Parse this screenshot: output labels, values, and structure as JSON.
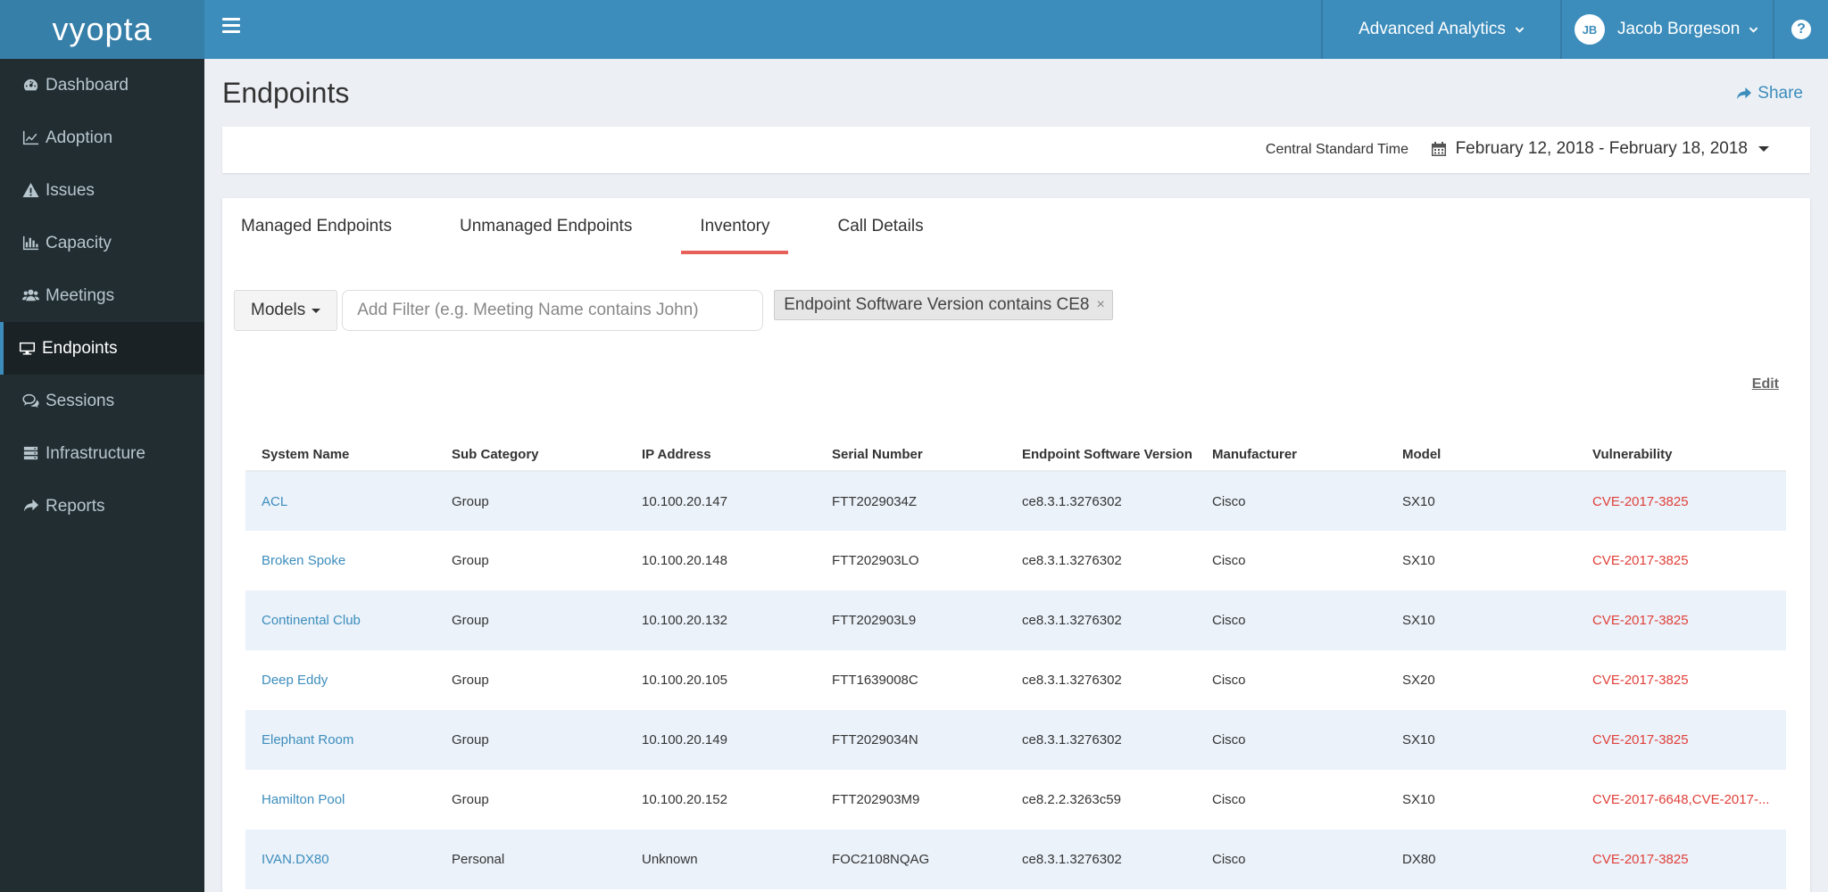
{
  "logo": "vyopta",
  "sidebar": {
    "items": [
      {
        "label": "Dashboard",
        "icon": "dashboard-icon"
      },
      {
        "label": "Adoption",
        "icon": "line-chart-icon"
      },
      {
        "label": "Issues",
        "icon": "warning-icon"
      },
      {
        "label": "Capacity",
        "icon": "bar-chart-icon"
      },
      {
        "label": "Meetings",
        "icon": "users-icon"
      },
      {
        "label": "Endpoints",
        "icon": "desktop-icon",
        "active": true
      },
      {
        "label": "Sessions",
        "icon": "comments-icon"
      },
      {
        "label": "Infrastructure",
        "icon": "server-icon"
      },
      {
        "label": "Reports",
        "icon": "share-icon"
      }
    ]
  },
  "header": {
    "analytics_label": "Advanced Analytics",
    "user_initials": "JB",
    "user_name": "Jacob Borgeson",
    "help_label": "?"
  },
  "page": {
    "title": "Endpoints",
    "share_label": "Share",
    "timezone": "Central Standard Time",
    "date_range": "February 12, 2018 - February 18, 2018"
  },
  "tabs": [
    "Managed Endpoints",
    "Unmanaged Endpoints",
    "Inventory",
    "Call Details"
  ],
  "active_tab": "Inventory",
  "filters": {
    "models_label": "Models",
    "placeholder": "Add Filter (e.g. Meeting Name contains John)",
    "chip_label": "Endpoint Software Version contains CE8",
    "chip_remove": "×"
  },
  "edit_label": "Edit",
  "table": {
    "columns": [
      "System Name",
      "Sub Category",
      "IP Address",
      "Serial Number",
      "Endpoint Software Version",
      "Manufacturer",
      "Model",
      "Vulnerability"
    ],
    "rows": [
      [
        "ACL",
        "Group",
        "10.100.20.147",
        "FTT2029034Z",
        "ce8.3.1.3276302",
        "Cisco",
        "SX10",
        "CVE-2017-3825"
      ],
      [
        "Broken Spoke",
        "Group",
        "10.100.20.148",
        "FTT202903LO",
        "ce8.3.1.3276302",
        "Cisco",
        "SX10",
        "CVE-2017-3825"
      ],
      [
        "Continental Club",
        "Group",
        "10.100.20.132",
        "FTT202903L9",
        "ce8.3.1.3276302",
        "Cisco",
        "SX10",
        "CVE-2017-3825"
      ],
      [
        "Deep Eddy",
        "Group",
        "10.100.20.105",
        "FTT1639008C",
        "ce8.3.1.3276302",
        "Cisco",
        "SX20",
        "CVE-2017-3825"
      ],
      [
        "Elephant Room",
        "Group",
        "10.100.20.149",
        "FTT2029034N",
        "ce8.3.1.3276302",
        "Cisco",
        "SX10",
        "CVE-2017-3825"
      ],
      [
        "Hamilton Pool",
        "Group",
        "10.100.20.152",
        "FTT202903M9",
        "ce8.2.2.3263c59",
        "Cisco",
        "SX10",
        "CVE-2017-6648,CVE-2017-..."
      ],
      [
        "IVAN.DX80",
        "Personal",
        "Unknown",
        "FOC2108NQAG",
        "ce8.3.1.3276302",
        "Cisco",
        "DX80",
        "CVE-2017-3825"
      ]
    ]
  },
  "colors": {
    "header": "#3c8dbc",
    "sidebar": "#222d32",
    "tab_active": "#e8605a",
    "vulnerability": "#e0403a",
    "link": "#3c8dbc"
  }
}
